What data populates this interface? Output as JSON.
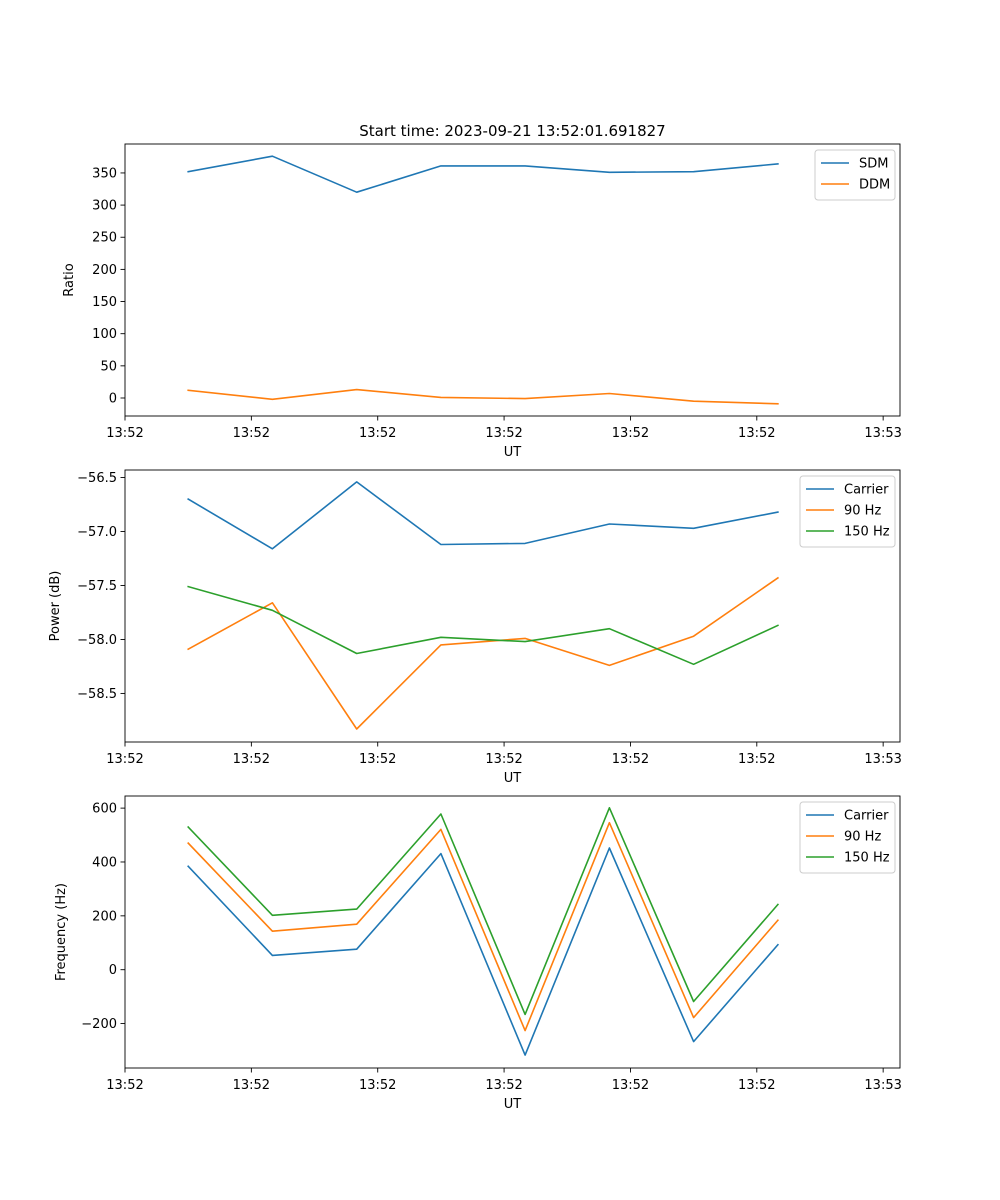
{
  "title": "Start time: 2023-09-21 13:52:01.691827",
  "colors": {
    "blue": "#1f77b4",
    "orange": "#ff7f0e",
    "green": "#2ca02c"
  },
  "chart_data": [
    {
      "type": "line",
      "title": "Start time: 2023-09-21 13:52:01.691827",
      "xlabel": "UT",
      "ylabel": "Ratio",
      "legend_position": "top-right",
      "x": [
        0,
        1,
        2,
        3,
        4,
        5,
        6,
        7
      ],
      "xlim": [
        -0.75,
        8.45
      ],
      "xticks": [
        -0.75,
        0.75,
        2.25,
        3.75,
        5.25,
        6.75,
        8.25
      ],
      "xtick_labels": [
        "13:52",
        "13:52",
        "13:52",
        "13:52",
        "13:52",
        "13:52",
        "13:53"
      ],
      "ylim": [
        -28,
        395
      ],
      "yticks": [
        0,
        50,
        100,
        150,
        200,
        250,
        300,
        350
      ],
      "ytick_labels": [
        "0",
        "50",
        "100",
        "150",
        "200",
        "250",
        "300",
        "350"
      ],
      "series": [
        {
          "name": "SDM",
          "color": "#1f77b4",
          "values": [
            352,
            376,
            320,
            361,
            361,
            351,
            352,
            364
          ]
        },
        {
          "name": "DDM",
          "color": "#ff7f0e",
          "values": [
            12,
            -2,
            13,
            1,
            -1,
            7,
            -5,
            -9
          ]
        }
      ]
    },
    {
      "type": "line",
      "title": "",
      "xlabel": "UT",
      "ylabel": "Power (dB)",
      "legend_position": "top-right",
      "x": [
        0,
        1,
        2,
        3,
        4,
        5,
        6,
        7
      ],
      "xlim": [
        -0.75,
        8.45
      ],
      "xticks": [
        -0.75,
        0.75,
        2.25,
        3.75,
        5.25,
        6.75,
        8.25
      ],
      "xtick_labels": [
        "13:52",
        "13:52",
        "13:52",
        "13:52",
        "13:52",
        "13:52",
        "13:53"
      ],
      "ylim": [
        -58.95,
        -56.43
      ],
      "yticks": [
        -58.5,
        -58.0,
        -57.5,
        -57.0,
        -56.5
      ],
      "ytick_labels": [
        "−58.5",
        "−58.0",
        "−57.5",
        "−57.0",
        "−56.5"
      ],
      "series": [
        {
          "name": "Carrier",
          "color": "#1f77b4",
          "values": [
            -56.7,
            -57.16,
            -56.54,
            -57.12,
            -57.11,
            -56.93,
            -56.97,
            -56.82
          ]
        },
        {
          "name": "90 Hz",
          "color": "#ff7f0e",
          "values": [
            -58.09,
            -57.66,
            -58.83,
            -58.05,
            -57.99,
            -58.24,
            -57.97,
            -57.43
          ]
        },
        {
          "name": "150 Hz",
          "color": "#2ca02c",
          "values": [
            -57.51,
            -57.73,
            -58.13,
            -57.98,
            -58.02,
            -57.9,
            -58.23,
            -57.87
          ]
        }
      ]
    },
    {
      "type": "line",
      "title": "",
      "xlabel": "UT",
      "ylabel": "Frequency (Hz)",
      "legend_position": "top-right",
      "x": [
        0,
        1,
        2,
        3,
        4,
        5,
        6,
        7
      ],
      "xlim": [
        -0.75,
        8.45
      ],
      "xticks": [
        -0.75,
        0.75,
        2.25,
        3.75,
        5.25,
        6.75,
        8.25
      ],
      "xtick_labels": [
        "13:52",
        "13:52",
        "13:52",
        "13:52",
        "13:52",
        "13:52",
        "13:53"
      ],
      "ylim": [
        -365,
        645
      ],
      "yticks": [
        -200,
        0,
        200,
        400,
        600
      ],
      "ytick_labels": [
        "−200",
        "0",
        "200",
        "400",
        "600"
      ],
      "series": [
        {
          "name": "Carrier",
          "color": "#1f77b4",
          "values": [
            384,
            53,
            76,
            431,
            -317,
            452,
            -267,
            93
          ]
        },
        {
          "name": "90 Hz",
          "color": "#ff7f0e",
          "values": [
            470,
            143,
            169,
            521,
            -226,
            546,
            -178,
            184
          ]
        },
        {
          "name": "150 Hz",
          "color": "#2ca02c",
          "values": [
            530,
            202,
            225,
            578,
            -166,
            601,
            -118,
            242
          ]
        }
      ]
    }
  ]
}
